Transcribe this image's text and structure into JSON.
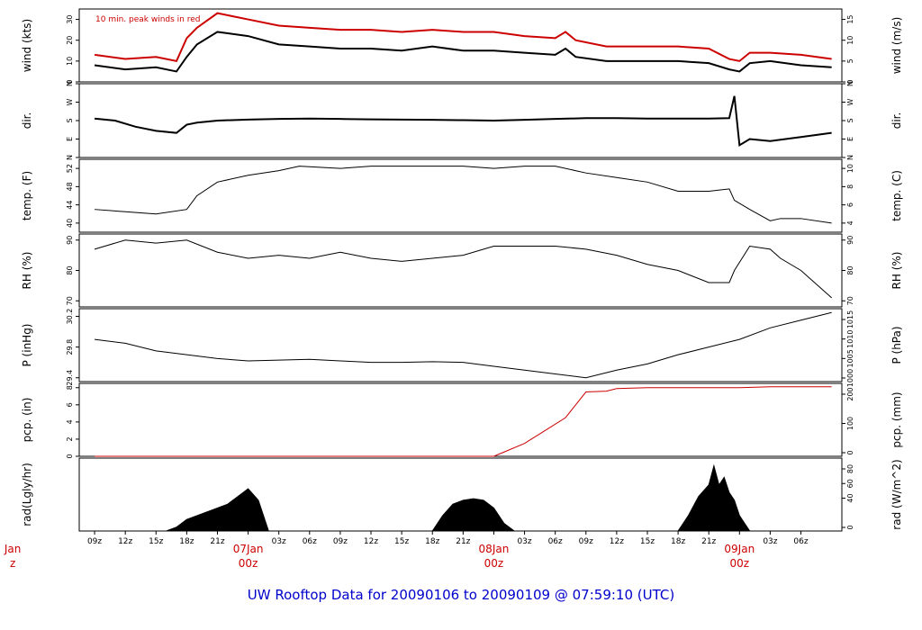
{
  "chart_data": {
    "type": "line",
    "title": "UW Rooftop Data for 20090106  to  20090109 @ 07:59:10  (UTC)",
    "annotation": "10 min. peak winds in red",
    "x_hours": [
      0,
      3,
      6,
      9,
      12,
      15,
      18,
      21,
      24,
      27,
      30,
      33,
      36,
      39,
      42,
      45,
      48,
      51,
      54,
      57,
      60,
      63,
      66,
      69,
      72,
      75,
      78
    ],
    "x_tick_labels": [
      "09z",
      "12z",
      "15z",
      "18z",
      "21z",
      "",
      "03z",
      "06z",
      "09z",
      "12z",
      "15z",
      "18z",
      "21z",
      "",
      "03z",
      "06z",
      "09z",
      "12z",
      "15z",
      "18z",
      "21z",
      "",
      "03z",
      "06z"
    ],
    "x_tick_hours": [
      0,
      3,
      6,
      9,
      12,
      15,
      18,
      21,
      24,
      27,
      30,
      33,
      36,
      39,
      42,
      45,
      48,
      51,
      54,
      57,
      60,
      63,
      66,
      69
    ],
    "day_markers": [
      {
        "hour": -8,
        "day": "Jan",
        "time": "z"
      },
      {
        "hour": 15,
        "day": "07Jan",
        "time": "00z"
      },
      {
        "hour": 39,
        "day": "08Jan",
        "time": "00z"
      },
      {
        "hour": 63,
        "day": "09Jan",
        "time": "00z"
      }
    ],
    "panels": [
      {
        "id": "wind",
        "ylabel_left": "wind (kts)",
        "ylabel_right": "wind (m/s)",
        "ylim": [
          0,
          35
        ],
        "ticks_left": [
          0,
          10,
          20,
          30
        ],
        "ticks_right": [
          0,
          5,
          10,
          15
        ],
        "series": [
          {
            "color": "#000000",
            "x": [
              0,
              3,
              6,
              8,
              9,
              10,
              12,
              15,
              18,
              21,
              24,
              27,
              30,
              33,
              36,
              39,
              42,
              45,
              46,
              47,
              50,
              54,
              57,
              60,
              62,
              63,
              64,
              66,
              69,
              72
            ],
            "y": [
              8,
              6,
              7,
              5,
              12,
              18,
              24,
              22,
              18,
              17,
              16,
              16,
              15,
              17,
              15,
              15,
              14,
              13,
              16,
              12,
              10,
              10,
              10,
              9,
              6,
              5,
              9,
              10,
              8,
              7
            ]
          },
          {
            "color": "#cc0000",
            "x": [
              0,
              3,
              6,
              8,
              9,
              10,
              12,
              15,
              18,
              21,
              24,
              27,
              30,
              33,
              36,
              39,
              42,
              45,
              46,
              47,
              50,
              54,
              57,
              60,
              62,
              63,
              64,
              66,
              69,
              72
            ],
            "y": [
              13,
              11,
              12,
              10,
              21,
              26,
              33,
              30,
              27,
              26,
              25,
              25,
              24,
              25,
              24,
              24,
              22,
              21,
              24,
              20,
              17,
              17,
              17,
              16,
              11,
              10,
              14,
              14,
              13,
              11
            ]
          }
        ]
      },
      {
        "id": "dir",
        "ylabel_left": "dir.",
        "ylabel_right": "dir.",
        "ylim": [
          0,
          360
        ],
        "ticks_left": [
          0,
          90,
          180,
          270,
          360
        ],
        "tick_labels_left": [
          "N",
          "E",
          "S",
          "W",
          "N"
        ],
        "tick_labels_right": [
          "N",
          "E",
          "S",
          "W",
          "N"
        ],
        "series": [
          {
            "color": "#000000",
            "x": [
              0,
              2,
              4,
              6,
              8,
              9,
              10,
              12,
              15,
              18,
              21,
              24,
              27,
              30,
              33,
              36,
              39,
              42,
              45,
              48,
              51,
              54,
              57,
              60,
              62,
              62.5,
              63,
              64,
              66,
              69,
              72
            ],
            "y": [
              190,
              180,
              150,
              130,
              120,
              160,
              170,
              180,
              185,
              188,
              190,
              188,
              186,
              185,
              184,
              182,
              180,
              184,
              188,
              192,
              192,
              190,
              190,
              190,
              192,
              300,
              60,
              90,
              80,
              100,
              120
            ]
          }
        ]
      },
      {
        "id": "temp",
        "ylabel_left": "temp. (F)",
        "ylabel_right": "temp. (C)",
        "ylim": [
          38,
          54
        ],
        "ticks_left": [
          40,
          44,
          48,
          52
        ],
        "ticks_right": [
          4,
          6,
          8,
          10
        ],
        "series": [
          {
            "color": "#000000",
            "x": [
              0,
              3,
              6,
              9,
              10,
              12,
              15,
              18,
              20,
              24,
              27,
              30,
              33,
              36,
              39,
              42,
              45,
              48,
              51,
              54,
              57,
              60,
              62,
              62.5,
              64,
              66,
              67,
              69,
              72
            ],
            "y": [
              43,
              42.5,
              42,
              43,
              46,
              49,
              50.5,
              51.5,
              52.5,
              52,
              52.5,
              52.5,
              52.5,
              52.5,
              52,
              52.5,
              52.5,
              51,
              50,
              49,
              47,
              47,
              47.5,
              45,
              43,
              40.5,
              41,
              41,
              40
            ]
          }
        ]
      },
      {
        "id": "rh",
        "ylabel_left": "RH (%)",
        "ylabel_right": "RH (%)",
        "ylim": [
          68,
          92
        ],
        "ticks_left": [
          70,
          80,
          90
        ],
        "ticks_right": [
          70,
          80,
          90
        ],
        "series": [
          {
            "color": "#000000",
            "x": [
              0,
              3,
              6,
              9,
              12,
              15,
              18,
              21,
              24,
              27,
              30,
              33,
              36,
              39,
              42,
              45,
              48,
              51,
              54,
              57,
              60,
              62,
              62.5,
              64,
              66,
              67,
              69,
              72
            ],
            "y": [
              87,
              90,
              89,
              90,
              86,
              84,
              85,
              84,
              86,
              84,
              83,
              84,
              85,
              88,
              88,
              88,
              87,
              85,
              82,
              80,
              76,
              76,
              80,
              88,
              87,
              84,
              80,
              71
            ]
          }
        ]
      },
      {
        "id": "pressure",
        "ylabel_left": "P (inHg)",
        "ylabel_right": "P (hPa)",
        "ylim": [
          29.35,
          30.3
        ],
        "ticks_left": [
          29.4,
          29.8,
          30.2
        ],
        "ticks_right": [
          1000,
          1005,
          1010,
          1015
        ],
        "tick_labels_left": [
          "29.4",
          "29.8",
          "30.2"
        ],
        "series": [
          {
            "color": "#000000",
            "x": [
              0,
              3,
              6,
              9,
              12,
              15,
              18,
              21,
              24,
              27,
              30,
              33,
              36,
              39,
              42,
              45,
              48,
              51,
              54,
              57,
              60,
              63,
              66,
              69,
              72
            ],
            "y": [
              29.9,
              29.85,
              29.75,
              29.7,
              29.65,
              29.62,
              29.63,
              29.64,
              29.62,
              29.6,
              29.6,
              29.61,
              29.6,
              29.55,
              29.5,
              29.45,
              29.4,
              29.5,
              29.58,
              29.7,
              29.8,
              29.9,
              30.05,
              30.15,
              30.25
            ]
          }
        ]
      },
      {
        "id": "pcp",
        "ylabel_left": "pcp. (in)",
        "ylabel_right": "pcp. (mm)",
        "ylim": [
          0,
          8.5
        ],
        "ticks_left": [
          0,
          2,
          4,
          6,
          8
        ],
        "ticks_right": [
          0,
          100,
          200
        ],
        "series": [
          {
            "color": "#cc0000",
            "x": [
              0,
              39,
              40,
              42,
              44,
              46,
              47,
              48,
              50,
              51,
              54,
              57,
              60,
              63,
              66,
              69,
              72
            ],
            "y": [
              0,
              0,
              0.5,
              1.5,
              3,
              4.5,
              6,
              7.5,
              7.6,
              7.9,
              8,
              8,
              8,
              8,
              8.1,
              8.1,
              8.1
            ]
          }
        ]
      },
      {
        "id": "rad",
        "ylabel_left": "rad(Lgly/hr)",
        "ylabel_right": "rad (W/m^2)",
        "ylim": [
          0,
          95
        ],
        "ticks_right": [
          0,
          40,
          60,
          80
        ],
        "series": [
          {
            "color": "#000000",
            "fill": true,
            "x": [
              0,
              7,
              8,
              9,
              11,
              12,
              13,
              14,
              15,
              16,
              17,
              33,
              34,
              35,
              36,
              37,
              38,
              39,
              40,
              41,
              57,
              58,
              59,
              60,
              60.5,
              61,
              61.5,
              62,
              62.5,
              63,
              64,
              72
            ],
            "y": [
              0,
              0,
              5,
              15,
              25,
              30,
              35,
              45,
              55,
              40,
              0,
              0,
              20,
              35,
              40,
              42,
              40,
              30,
              10,
              0,
              0,
              20,
              45,
              60,
              85,
              60,
              70,
              50,
              40,
              20,
              0,
              0
            ]
          }
        ]
      }
    ]
  }
}
